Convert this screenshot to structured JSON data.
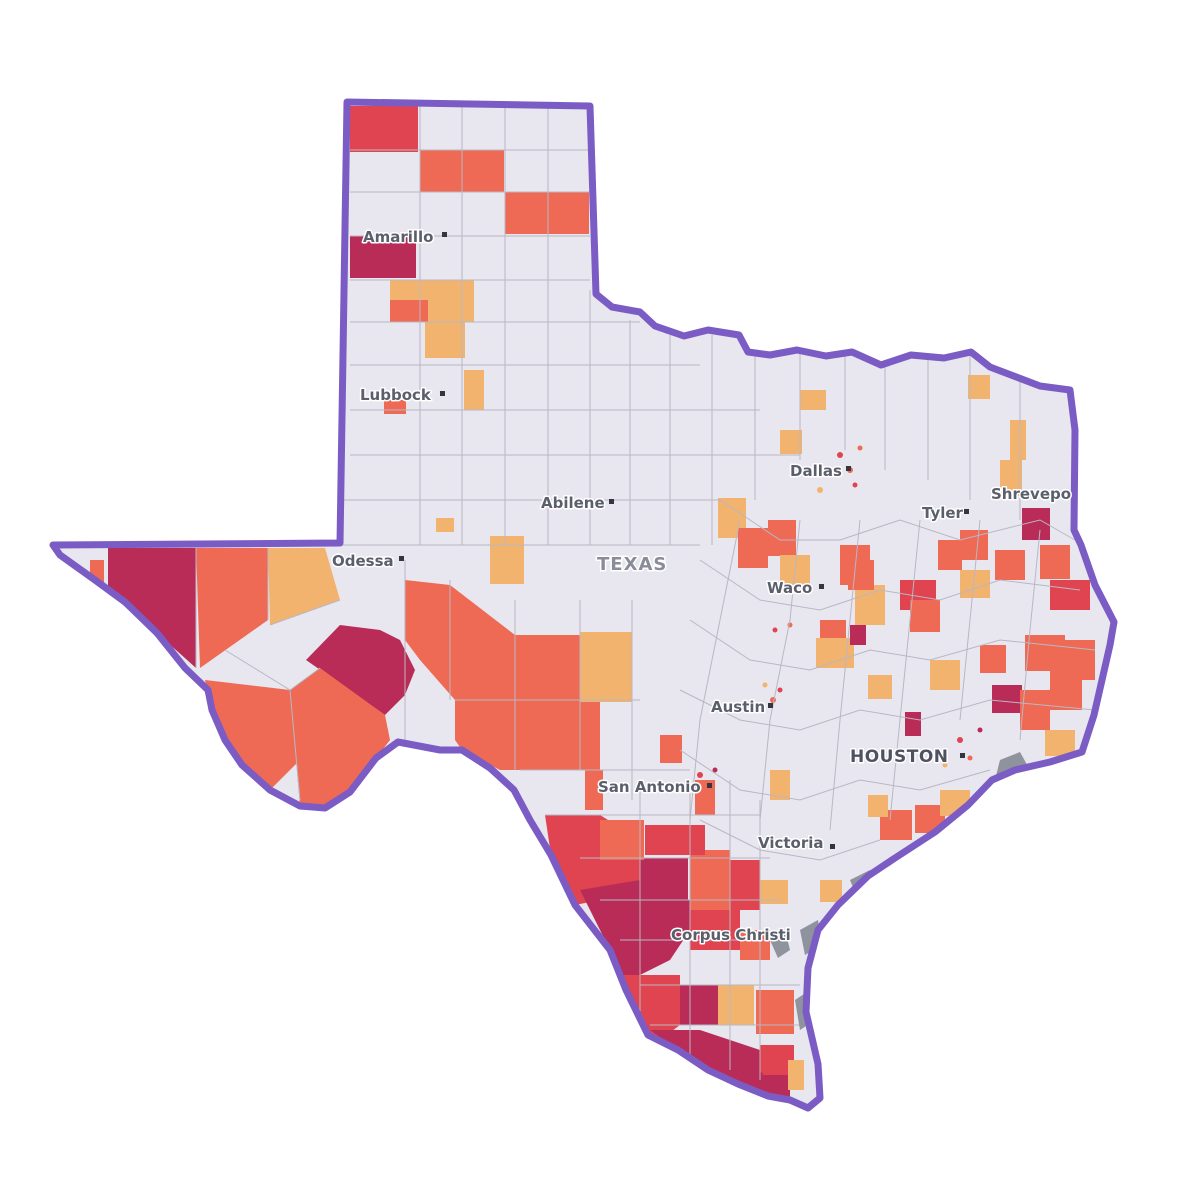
{
  "map": {
    "state_label": "TEXAS",
    "cities": [
      {
        "name": "Amarillo"
      },
      {
        "name": "Lubbock"
      },
      {
        "name": "Dallas"
      },
      {
        "name": "Tyler"
      },
      {
        "name": "Shrevepo"
      },
      {
        "name": "Abilene"
      },
      {
        "name": "Odessa"
      },
      {
        "name": "Waco"
      },
      {
        "name": "Austin"
      },
      {
        "name": "HOUSTON"
      },
      {
        "name": "San Antonio"
      },
      {
        "name": "Victoria"
      },
      {
        "name": "Corpus Christi"
      }
    ],
    "colors": {
      "background": "#ffffff",
      "county_none": "#e8e6ee",
      "county_border": "#b9b7c4",
      "outline": "#7b5cc4",
      "level_low": "#f2b36e",
      "level_mid": "#ee6a55",
      "level_high": "#e04450",
      "level_highest": "#b82c57"
    }
  }
}
